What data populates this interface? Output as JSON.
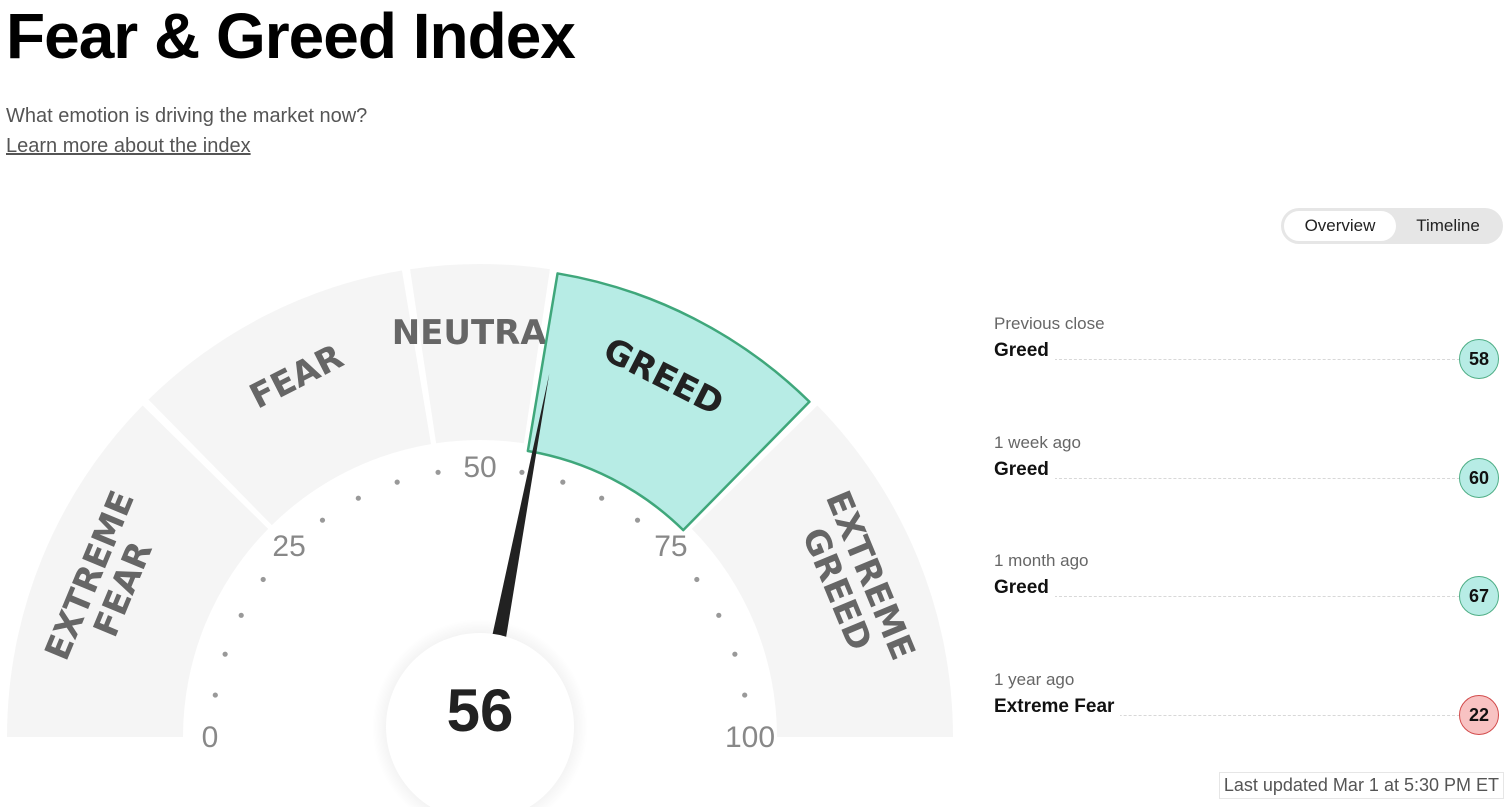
{
  "header": {
    "title": "Fear & Greed Index",
    "subtitle": "What emotion is driving the market now?",
    "learn_more_link": "Learn more about the index"
  },
  "view_toggle": {
    "options": [
      "Overview",
      "Timeline"
    ],
    "selected": "Overview"
  },
  "gauge": {
    "value": 56,
    "current_rating": "Greed",
    "segments": [
      {
        "label_lines": [
          "EXTREME",
          "FEAR"
        ],
        "range": [
          0,
          25
        ]
      },
      {
        "label_lines": [
          "FEAR"
        ],
        "range": [
          25,
          45
        ]
      },
      {
        "label_lines": [
          "NEUTRAL"
        ],
        "range": [
          45,
          55
        ]
      },
      {
        "label_lines": [
          "GREED"
        ],
        "range": [
          55,
          75
        ]
      },
      {
        "label_lines": [
          "EXTREME",
          "GREED"
        ],
        "range": [
          75,
          100
        ]
      }
    ],
    "tick_labels": [
      "0",
      "25",
      "50",
      "75",
      "100"
    ],
    "colors": {
      "inactive_segment": "#f5f5f5",
      "active_segment": "#b7ece5",
      "active_segment_border": "#3fa77b",
      "needle": "#222222",
      "tick_dot": "#999999"
    }
  },
  "history": [
    {
      "period": "Previous close",
      "rating": "Greed",
      "value": "58",
      "sentiment": "greed"
    },
    {
      "period": "1 week ago",
      "rating": "Greed",
      "value": "60",
      "sentiment": "greed"
    },
    {
      "period": "1 month ago",
      "rating": "Greed",
      "value": "67",
      "sentiment": "greed"
    },
    {
      "period": "1 year ago",
      "rating": "Extreme Fear",
      "value": "22",
      "sentiment": "fear"
    }
  ],
  "last_updated": "Last updated Mar 1 at 5:30 PM ET"
}
